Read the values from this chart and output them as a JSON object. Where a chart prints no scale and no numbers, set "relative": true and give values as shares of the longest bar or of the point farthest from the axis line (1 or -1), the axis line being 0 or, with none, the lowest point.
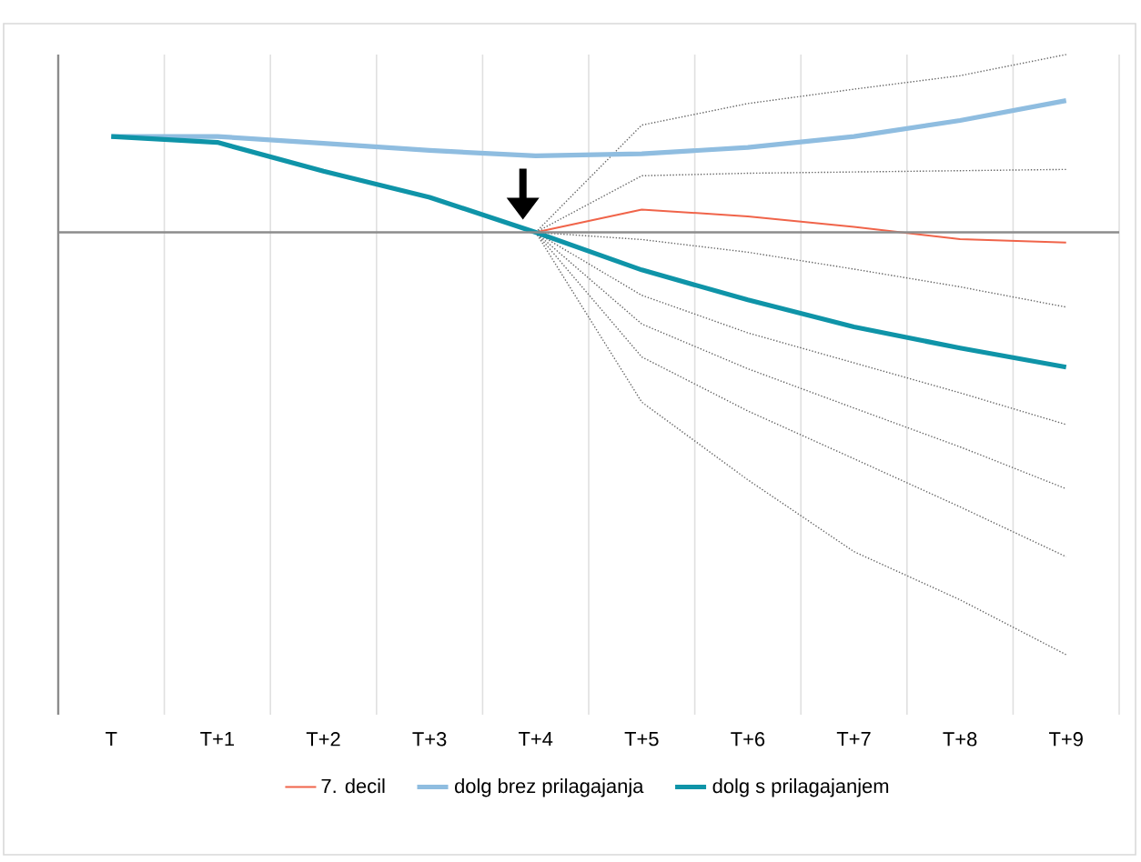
{
  "chart_data": {
    "type": "line",
    "relative": true,
    "grid": "x",
    "legend": "bottom",
    "categories": [
      "T",
      "T+1",
      "T+2",
      "T+3",
      "T+4",
      "T+5",
      "T+6",
      "T+7",
      "T+8",
      "T+9"
    ],
    "series": [
      {
        "name": "7. decil",
        "color": "#f0644a",
        "line_style": "solid",
        "values": [
          null,
          null,
          null,
          null,
          0,
          0.054,
          0.038,
          0.013,
          -0.016,
          -0.024
        ]
      },
      {
        "name": "dolg brez prilagajanja",
        "color": "#8fbde0",
        "line_style": "solid",
        "values": [
          0.227,
          0.227,
          0.211,
          0.194,
          0.181,
          0.186,
          0.201,
          0.227,
          0.265,
          0.312
        ]
      },
      {
        "name": "dolg s prilagajanjem",
        "color": "#0f94a8",
        "line_style": "solid",
        "values": [
          0.227,
          0.213,
          0.145,
          0.083,
          0,
          -0.089,
          -0.16,
          -0.224,
          -0.274,
          -0.319
        ]
      },
      {
        "color": "#666666",
        "line_style": "dotted",
        "values": [
          null,
          null,
          null,
          null,
          0,
          0.254,
          0.305,
          0.339,
          0.371,
          0.421
        ]
      },
      {
        "color": "#666666",
        "line_style": "dotted",
        "values": [
          null,
          null,
          null,
          null,
          0,
          0.134,
          0.14,
          0.143,
          0.146,
          0.149
        ]
      },
      {
        "color": "#666666",
        "line_style": "dotted",
        "values": [
          null,
          null,
          null,
          null,
          0,
          -0.017,
          -0.047,
          -0.087,
          -0.129,
          -0.177
        ]
      },
      {
        "color": "#666666",
        "line_style": "dotted",
        "values": [
          null,
          null,
          null,
          null,
          0,
          -0.149,
          -0.238,
          -0.309,
          -0.38,
          -0.455
        ]
      },
      {
        "color": "#666666",
        "line_style": "dotted",
        "values": [
          null,
          null,
          null,
          null,
          0,
          -0.217,
          -0.323,
          -0.416,
          -0.508,
          -0.607
        ]
      },
      {
        "color": "#666666",
        "line_style": "dotted",
        "values": [
          null,
          null,
          null,
          null,
          0,
          -0.295,
          -0.423,
          -0.536,
          -0.65,
          -0.768
        ]
      },
      {
        "color": "#666666",
        "line_style": "dotted",
        "values": [
          null,
          null,
          null,
          null,
          0,
          -0.402,
          -0.586,
          -0.756,
          -0.87,
          -1
        ]
      }
    ]
  }
}
